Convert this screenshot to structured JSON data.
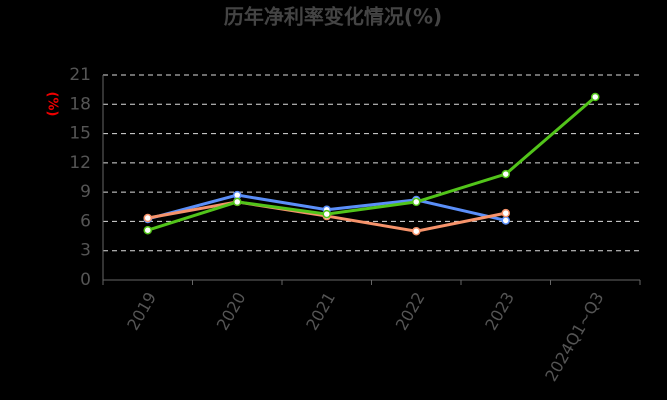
{
  "chart_data": {
    "type": "line",
    "title": "历年净利率变化情况(%)",
    "y_label": "(%)",
    "categories": [
      "2019",
      "2020",
      "2021",
      "2022",
      "2023",
      "2024Q1~Q3"
    ],
    "series": [
      {
        "color": "#5b8ff9",
        "values": [
          6.25,
          8.7,
          7.2,
          8.2,
          6.1,
          null
        ]
      },
      {
        "color": "#f6936b",
        "values": [
          6.35,
          8.0,
          6.55,
          5.0,
          6.85,
          null
        ]
      },
      {
        "color": "#52c41a",
        "values": [
          5.1,
          8.0,
          6.75,
          8.0,
          10.85,
          18.75
        ]
      }
    ],
    "ylim": [
      0,
      21
    ],
    "yticks": [
      0,
      3,
      6,
      9,
      12,
      15,
      18,
      21
    ],
    "grid": true
  }
}
